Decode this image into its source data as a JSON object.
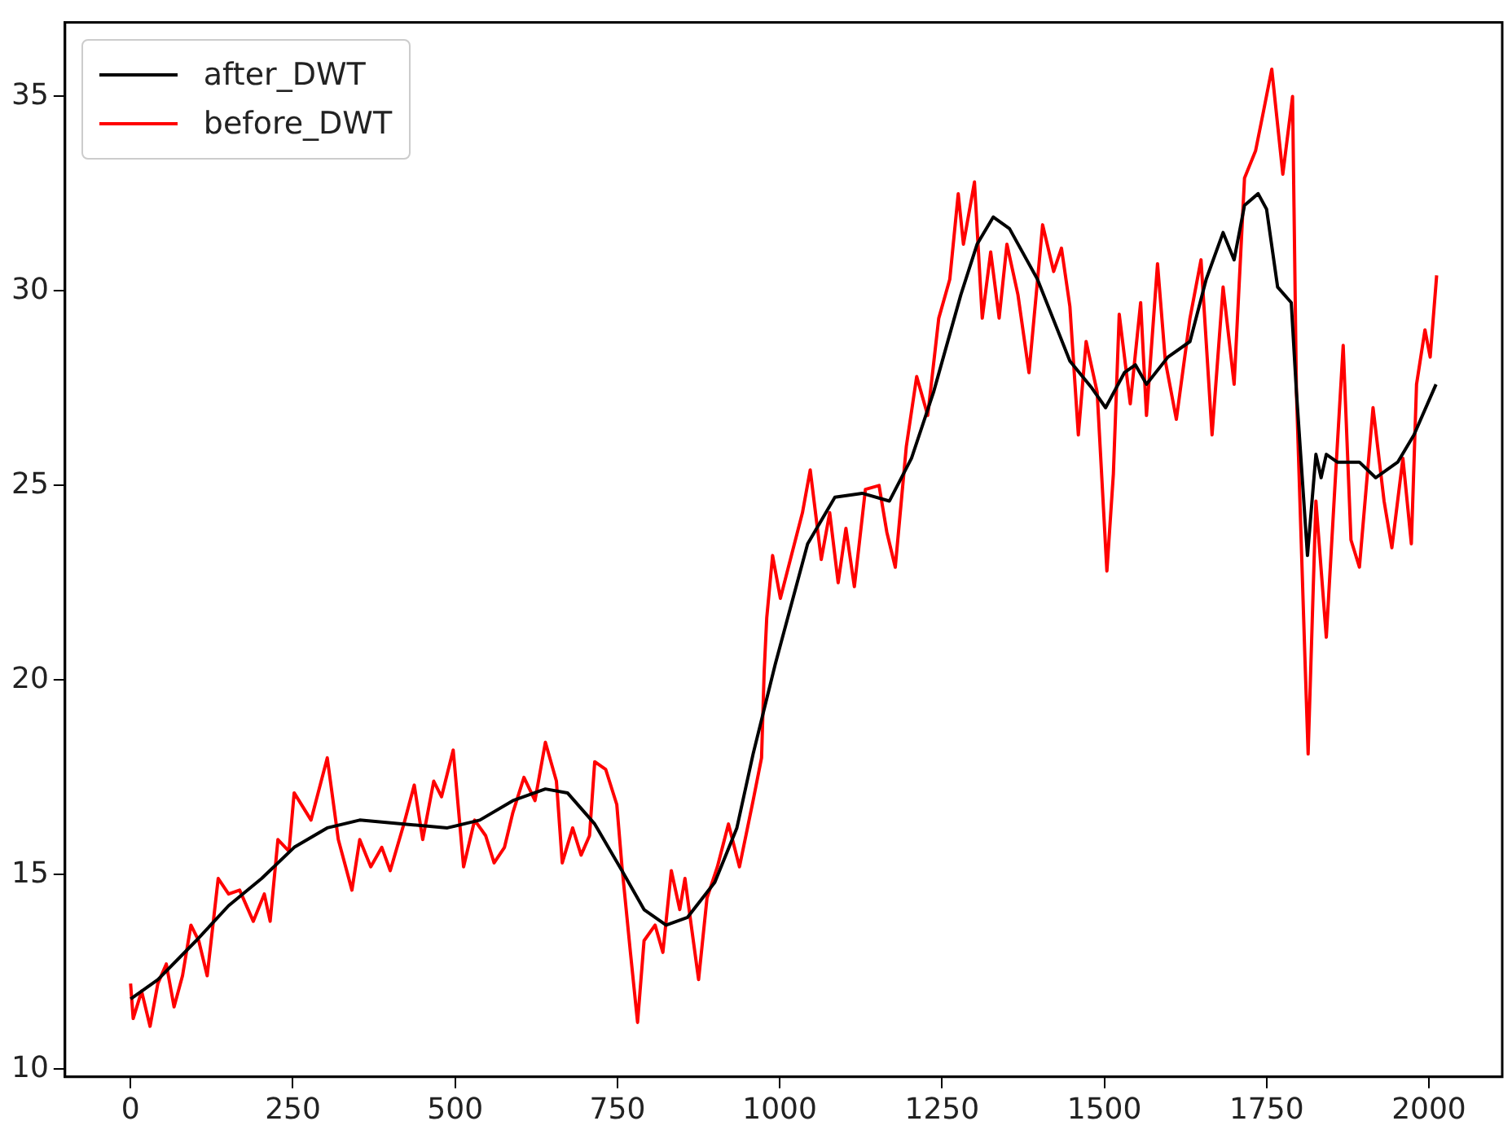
{
  "chart_data": {
    "type": "line",
    "xlim": [
      -101,
      2113
    ],
    "ylim": [
      9.8,
      36.9
    ],
    "xticks": [
      0,
      250,
      500,
      750,
      1000,
      1250,
      1500,
      1750,
      2000
    ],
    "yticks": [
      10,
      15,
      20,
      25,
      30,
      35
    ],
    "grid": false,
    "legend": "top left",
    "marker": "none",
    "line_style": "solid",
    "series": [
      {
        "name": "after_DWT",
        "color": "#000000",
        "x": [
          0,
          42,
          101,
          151,
          202,
          252,
          303,
          353,
          421,
          488,
          538,
          589,
          639,
          673,
          715,
          757,
          791,
          825,
          858,
          900,
          934,
          959,
          993,
          1043,
          1085,
          1127,
          1169,
          1203,
          1237,
          1279,
          1304,
          1329,
          1354,
          1397,
          1447,
          1481,
          1502,
          1531,
          1548,
          1565,
          1598,
          1632,
          1657,
          1683,
          1700,
          1716,
          1737,
          1750,
          1767,
          1788,
          1796,
          1813,
          1826,
          1834,
          1842,
          1859,
          1893,
          1918,
          1952,
          1977,
          2011
        ],
        "values": [
          11.8,
          12.3,
          13.3,
          14.2,
          14.9,
          15.7,
          16.2,
          16.4,
          16.3,
          16.2,
          16.4,
          16.9,
          17.2,
          17.1,
          16.3,
          15.1,
          14.1,
          13.7,
          13.9,
          14.8,
          16.2,
          18.1,
          20.4,
          23.5,
          24.7,
          24.8,
          24.6,
          25.7,
          27.4,
          29.9,
          31.2,
          31.9,
          31.6,
          30.3,
          28.2,
          27.5,
          27.0,
          27.9,
          28.1,
          27.6,
          28.3,
          28.7,
          30.3,
          31.5,
          30.8,
          32.2,
          32.5,
          32.1,
          30.1,
          29.7,
          27.4,
          23.2,
          25.8,
          25.2,
          25.8,
          25.6,
          25.6,
          25.2,
          25.6,
          26.3,
          27.6
        ]
      },
      {
        "name": "before_DWT",
        "color": "#ff0000",
        "x": [
          0,
          4,
          17,
          30,
          42,
          55,
          67,
          80,
          93,
          105,
          118,
          135,
          151,
          168,
          189,
          206,
          215,
          227,
          244,
          252,
          278,
          303,
          320,
          341,
          353,
          370,
          387,
          400,
          421,
          437,
          450,
          467,
          479,
          497,
          513,
          530,
          547,
          560,
          576,
          589,
          606,
          623,
          639,
          656,
          665,
          681,
          694,
          707,
          715,
          732,
          749,
          757,
          770,
          781,
          791,
          808,
          820,
          833,
          846,
          854,
          862,
          875,
          888,
          904,
          921,
          938,
          959,
          972,
          976,
          980,
          989,
          1001,
          1018,
          1035,
          1047,
          1064,
          1077,
          1090,
          1102,
          1115,
          1132,
          1153,
          1165,
          1178,
          1195,
          1211,
          1228,
          1245,
          1262,
          1275,
          1283,
          1300,
          1312,
          1325,
          1338,
          1350,
          1367,
          1384,
          1405,
          1422,
          1434,
          1447,
          1460,
          1472,
          1489,
          1504,
          1514,
          1523,
          1540,
          1556,
          1565,
          1582,
          1594,
          1611,
          1632,
          1649,
          1666,
          1683,
          1700,
          1716,
          1733,
          1745,
          1758,
          1775,
          1790,
          1796,
          1809,
          1814,
          1826,
          1842,
          1855,
          1868,
          1880,
          1893,
          1914,
          1931,
          1943,
          1960,
          1973,
          1981,
          1994,
          2002,
          2012
        ],
        "values": [
          12.2,
          11.3,
          12.0,
          11.1,
          12.2,
          12.7,
          11.6,
          12.4,
          13.7,
          13.3,
          12.4,
          14.9,
          14.5,
          14.6,
          13.8,
          14.5,
          13.8,
          15.9,
          15.6,
          17.1,
          16.4,
          18.0,
          15.9,
          14.6,
          15.9,
          15.2,
          15.7,
          15.1,
          16.3,
          17.3,
          15.9,
          17.4,
          17.0,
          18.2,
          15.2,
          16.4,
          16.0,
          15.3,
          15.7,
          16.6,
          17.5,
          16.9,
          18.4,
          17.4,
          15.3,
          16.2,
          15.5,
          16.0,
          17.9,
          17.7,
          16.8,
          15.2,
          13.0,
          11.2,
          13.3,
          13.7,
          13.0,
          15.1,
          14.1,
          14.9,
          13.9,
          12.3,
          14.4,
          15.2,
          16.3,
          15.2,
          16.9,
          18.0,
          20.2,
          21.6,
          23.2,
          22.1,
          23.2,
          24.3,
          25.4,
          23.1,
          24.3,
          22.5,
          23.9,
          22.4,
          24.9,
          25.0,
          23.8,
          22.9,
          26.0,
          27.8,
          26.8,
          29.3,
          30.3,
          32.5,
          31.2,
          32.8,
          29.3,
          31.0,
          29.3,
          31.2,
          29.9,
          27.9,
          31.7,
          30.5,
          31.1,
          29.6,
          26.3,
          28.7,
          27.4,
          22.8,
          25.3,
          29.4,
          27.1,
          29.7,
          26.8,
          30.7,
          28.2,
          26.7,
          29.3,
          30.8,
          26.3,
          30.1,
          27.6,
          32.9,
          33.6,
          34.6,
          35.7,
          33.0,
          35.0,
          27.4,
          20.6,
          18.1,
          24.6,
          21.1,
          24.9,
          28.6,
          23.6,
          22.9,
          27.0,
          24.6,
          23.4,
          25.7,
          23.5,
          27.6,
          29.0,
          28.3,
          30.4
        ]
      }
    ]
  }
}
